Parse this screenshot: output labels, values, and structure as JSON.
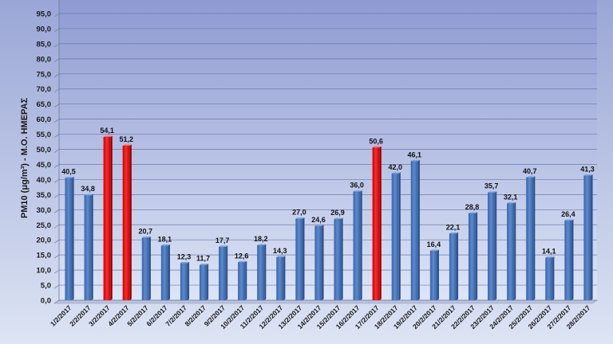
{
  "chart_data": {
    "type": "bar",
    "ylabel": "PM10 (μg/m³) - Μ.Ο. ΗΜΕΡΑΣ",
    "ylim": [
      0,
      95
    ],
    "ytick_step": 5,
    "ytick_labels": [
      "0,0",
      "5,0",
      "10,0",
      "15,0",
      "20,0",
      "25,0",
      "30,0",
      "35,0",
      "40,0",
      "45,0",
      "50,0",
      "55,0",
      "60,0",
      "65,0",
      "70,0",
      "75,0",
      "80,0",
      "85,0",
      "90,0",
      "95,0"
    ],
    "grid": true,
    "categories": [
      "1/2/2017",
      "2/2/2017",
      "3/2/2017",
      "4/2/2017",
      "5/2/2017",
      "6/2/2017",
      "7/2/2017",
      "8/2/2017",
      "9/2/2017",
      "10/2/2017",
      "11/2/2017",
      "12/2/2017",
      "13/2/2017",
      "14/2/2017",
      "15/2/2017",
      "16/2/2017",
      "17/2/2017",
      "18/2/2017",
      "19/2/2017",
      "20/2/2017",
      "21/2/2017",
      "22/2/2017",
      "23/2/2017",
      "24/2/2017",
      "25/2/2017",
      "26/2/2017",
      "27/2/2017",
      "28/2/2017"
    ],
    "values": [
      40.5,
      34.8,
      54.1,
      51.2,
      20.7,
      18.1,
      12.3,
      11.7,
      17.7,
      12.6,
      18.2,
      14.3,
      27.0,
      24.6,
      26.9,
      36.0,
      50.6,
      42.0,
      46.1,
      16.4,
      22.1,
      28.8,
      35.7,
      32.1,
      40.7,
      14.1,
      26.4,
      41.3
    ],
    "value_labels": [
      "40,5",
      "34,8",
      "54,1",
      "51,2",
      "20,7",
      "18,1",
      "12,3",
      "11,7",
      "17,7",
      "12,6",
      "18,2",
      "14,3",
      "27,0",
      "24,6",
      "26,9",
      "36,0",
      "50,6",
      "42,0",
      "46,1",
      "16,4",
      "22,1",
      "28,8",
      "35,7",
      "32,1",
      "40,7",
      "14,1",
      "26,4",
      "41,3"
    ],
    "colors": {
      "normal": "#4a78bd",
      "highlight": "#ee1111"
    },
    "highlight_threshold": 50
  }
}
